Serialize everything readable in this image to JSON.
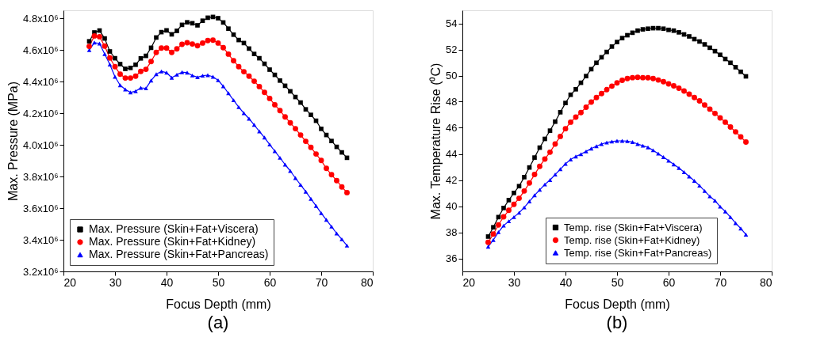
{
  "chart_data": [
    {
      "type": "line",
      "xlabel": "Focus Depth (mm)",
      "ylabel": "Max. Pressure (MPa)",
      "annotations": [
        "(a)"
      ],
      "x": [
        25,
        26,
        27,
        28,
        29,
        30,
        31,
        32,
        33,
        34,
        35,
        36,
        37,
        38,
        39,
        40,
        41,
        42,
        43,
        44,
        45,
        46,
        47,
        48,
        49,
        50,
        51,
        52,
        53,
        54,
        55,
        56,
        57,
        58,
        59,
        60,
        61,
        62,
        63,
        64,
        65,
        66,
        67,
        68,
        69,
        70,
        71,
        72,
        73,
        74,
        75
      ],
      "xlim": [
        20,
        80
      ],
      "xticks": [
        20,
        30,
        40,
        50,
        60,
        70,
        80
      ],
      "ylim": [
        3200000,
        4850000
      ],
      "yticks": [
        {
          "value": 3200000,
          "label": "3.2x10⁶"
        },
        {
          "value": 3400000,
          "label": "3.4x10⁶"
        },
        {
          "value": 3600000,
          "label": "3.6x10⁶"
        },
        {
          "value": 3800000,
          "label": "3.8x10⁶"
        },
        {
          "value": 4000000,
          "label": "4.0x10⁶"
        },
        {
          "value": 4200000,
          "label": "4.2x10⁶"
        },
        {
          "value": 4400000,
          "label": "4.4x10⁶"
        },
        {
          "value": 4600000,
          "label": "4.6x10⁶"
        },
        {
          "value": 4800000,
          "label": "4.8x10⁶"
        }
      ],
      "grid": false,
      "legend": "bottom left",
      "line_style": "solid",
      "series": [
        {
          "name": "Max. Pressure (Skin+Fat+Viscera)",
          "color": "#000000",
          "marker": "square",
          "values": [
            4654000,
            4710000,
            4722000,
            4672000,
            4590000,
            4547000,
            4510000,
            4480000,
            4486000,
            4506000,
            4546000,
            4562000,
            4613000,
            4678000,
            4712000,
            4723000,
            4698000,
            4720000,
            4758000,
            4774000,
            4768000,
            4755000,
            4784000,
            4803000,
            4808000,
            4800000,
            4773000,
            4734000,
            4696000,
            4662000,
            4643000,
            4608000,
            4574000,
            4547000,
            4512000,
            4475000,
            4442000,
            4406000,
            4373000,
            4338000,
            4302000,
            4267000,
            4224000,
            4189000,
            4152000,
            4101000,
            4062000,
            4024000,
            3987000,
            3952000,
            3918000
          ]
        },
        {
          "name": "Max. Pressure (Skin+Fat+Kidney)",
          "color": "#ff0000",
          "marker": "circle",
          "values": [
            4622000,
            4688000,
            4683000,
            4624000,
            4549000,
            4494000,
            4446000,
            4422000,
            4422000,
            4434000,
            4464000,
            4477000,
            4526000,
            4584000,
            4611000,
            4611000,
            4584000,
            4606000,
            4635000,
            4645000,
            4637000,
            4626000,
            4643000,
            4659000,
            4661000,
            4643000,
            4614000,
            4573000,
            4531000,
            4494000,
            4462000,
            4434000,
            4402000,
            4368000,
            4331000,
            4293000,
            4253000,
            4216000,
            4176000,
            4139000,
            4102000,
            4062000,
            4022000,
            3984000,
            3942000,
            3901000,
            3851000,
            3811000,
            3774000,
            3734000,
            3698000
          ]
        },
        {
          "name": "Max. Pressure (Skin+Fat+Pancreas)",
          "color": "#0000ff",
          "marker": "triangle",
          "values": [
            4598000,
            4646000,
            4640000,
            4574000,
            4507000,
            4430000,
            4376000,
            4350000,
            4331000,
            4339000,
            4360000,
            4357000,
            4406000,
            4446000,
            4464000,
            4456000,
            4424000,
            4443000,
            4459000,
            4456000,
            4438000,
            4427000,
            4437000,
            4440000,
            4430000,
            4408000,
            4370000,
            4326000,
            4282000,
            4238000,
            4200000,
            4165000,
            4126000,
            4085000,
            4046000,
            4002000,
            3960000,
            3918000,
            3875000,
            3835000,
            3790000,
            3747000,
            3704000,
            3659000,
            3614000,
            3568000,
            3526000,
            3483000,
            3440000,
            3403000,
            3363000
          ]
        }
      ]
    },
    {
      "type": "line",
      "xlabel": "Focus Depth (mm)",
      "ylabel": "Max. Temperature Rise (⁰C)",
      "annotations": [
        "(b)"
      ],
      "x": [
        25,
        26,
        27,
        28,
        29,
        30,
        31,
        32,
        33,
        34,
        35,
        36,
        37,
        38,
        39,
        40,
        41,
        42,
        43,
        44,
        45,
        46,
        47,
        48,
        49,
        50,
        51,
        52,
        53,
        54,
        55,
        56,
        57,
        58,
        59,
        60,
        61,
        62,
        63,
        64,
        65,
        66,
        67,
        68,
        69,
        70,
        71,
        72,
        73,
        74,
        75
      ],
      "xlim": [
        20,
        80
      ],
      "xticks": [
        20,
        30,
        40,
        50,
        60,
        70,
        80
      ],
      "ylim": [
        35,
        55
      ],
      "yticks": [
        36,
        38,
        40,
        42,
        44,
        46,
        48,
        50,
        52,
        54
      ],
      "grid": false,
      "legend": "bottom right",
      "line_style": "solid",
      "series": [
        {
          "name": "Temp. rise (Skin+Fat+Viscera)",
          "color": "#000000",
          "marker": "square",
          "values": [
            37.67,
            38.38,
            39.16,
            39.86,
            40.46,
            41.01,
            41.53,
            42.22,
            42.96,
            43.72,
            44.48,
            45.15,
            45.78,
            46.47,
            47.19,
            47.9,
            48.53,
            48.95,
            49.45,
            49.96,
            50.49,
            50.98,
            51.4,
            51.81,
            52.22,
            52.57,
            52.87,
            53.09,
            53.28,
            53.44,
            53.54,
            53.59,
            53.63,
            53.63,
            53.59,
            53.5,
            53.44,
            53.31,
            53.15,
            53.0,
            52.79,
            52.61,
            52.39,
            52.13,
            51.87,
            51.59,
            51.27,
            50.98,
            50.64,
            50.29,
            49.94
          ]
        },
        {
          "name": "Temp. rise (Skin+Fat+Kidney)",
          "color": "#ff0000",
          "marker": "circle",
          "values": [
            37.23,
            37.86,
            38.56,
            39.18,
            39.68,
            40.14,
            40.6,
            41.16,
            41.77,
            42.42,
            43.05,
            43.61,
            44.13,
            44.76,
            45.34,
            45.93,
            46.43,
            46.82,
            47.17,
            47.58,
            47.97,
            48.32,
            48.62,
            48.92,
            49.19,
            49.44,
            49.64,
            49.77,
            49.84,
            49.86,
            49.84,
            49.83,
            49.77,
            49.66,
            49.53,
            49.36,
            49.21,
            49.03,
            48.82,
            48.58,
            48.32,
            48.06,
            47.75,
            47.43,
            47.1,
            46.76,
            46.43,
            46.06,
            45.69,
            45.3,
            44.91
          ]
        },
        {
          "name": "Temp. rise (Skin+Fat+Pancreas)",
          "color": "#0000ff",
          "marker": "triangle",
          "values": [
            36.89,
            37.41,
            38.01,
            38.51,
            38.84,
            39.16,
            39.49,
            39.9,
            40.36,
            40.83,
            41.25,
            41.66,
            42.0,
            42.42,
            42.83,
            43.24,
            43.57,
            43.8,
            43.98,
            44.19,
            44.41,
            44.59,
            44.76,
            44.87,
            44.95,
            45.0,
            45.0,
            44.98,
            44.91,
            44.76,
            44.63,
            44.5,
            44.28,
            44.02,
            43.76,
            43.48,
            43.2,
            42.92,
            42.61,
            42.27,
            41.94,
            41.57,
            41.16,
            40.75,
            40.42,
            39.96,
            39.59,
            39.16,
            38.7,
            38.29,
            37.82
          ]
        }
      ]
    }
  ]
}
